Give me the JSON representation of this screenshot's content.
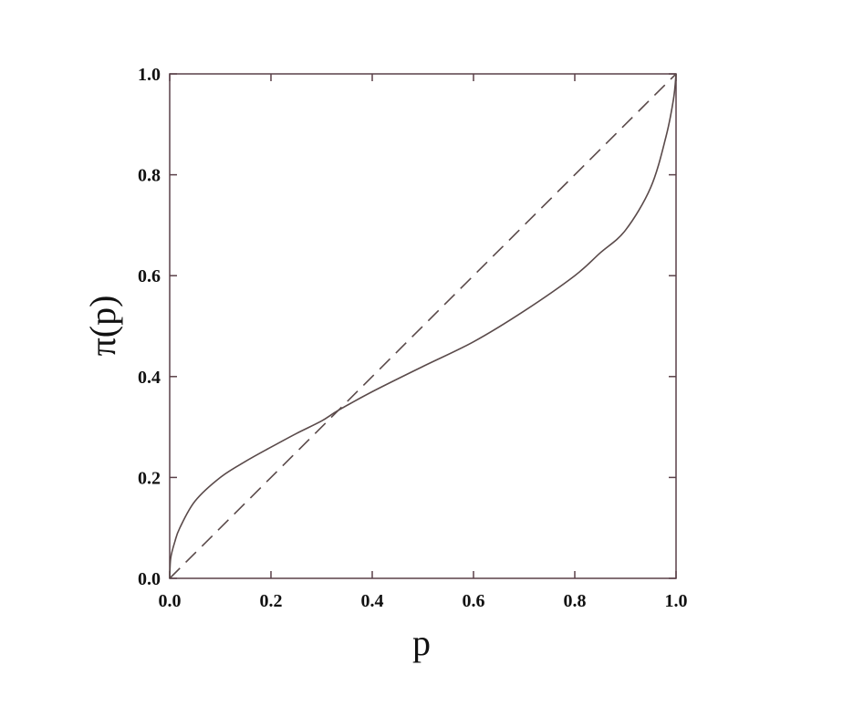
{
  "chart_data": {
    "type": "line",
    "xlabel": "p",
    "ylabel": "π(p)",
    "xlim": [
      0,
      1
    ],
    "ylim": [
      0,
      1
    ],
    "xticks": [
      "0.0",
      "0.2",
      "0.4",
      "0.6",
      "0.8",
      "1.0"
    ],
    "yticks": [
      "0.0",
      "0.2",
      "0.4",
      "0.6",
      "0.8",
      "1.0"
    ],
    "grid": false,
    "series": [
      {
        "style": "solid",
        "color": "#5a4a4a",
        "x": [
          0,
          0.002,
          0.01,
          0.02,
          0.05,
          0.1,
          0.15,
          0.2,
          0.25,
          0.3,
          0.333,
          0.4,
          0.5,
          0.6,
          0.7,
          0.8,
          0.85,
          0.9,
          0.95,
          0.98,
          0.995,
          1.0
        ],
        "y": [
          0,
          0.04,
          0.072,
          0.1,
          0.153,
          0.2,
          0.232,
          0.26,
          0.287,
          0.312,
          0.333,
          0.37,
          0.42,
          0.469,
          0.53,
          0.6,
          0.645,
          0.69,
          0.775,
          0.875,
          0.95,
          1.0
        ]
      },
      {
        "style": "dashed",
        "color": "#5a4a4a",
        "x": [
          0,
          1
        ],
        "y": [
          0,
          1
        ]
      }
    ]
  }
}
